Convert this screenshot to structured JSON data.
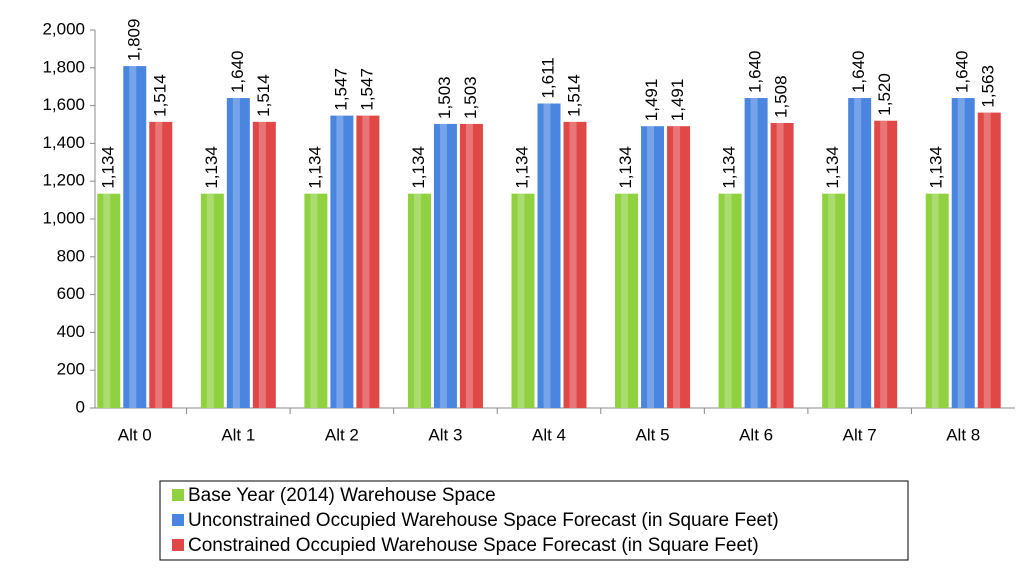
{
  "chart_data": {
    "type": "bar",
    "categories": [
      "Alt 0",
      "Alt 1",
      "Alt 2",
      "Alt 3",
      "Alt 4",
      "Alt 5",
      "Alt 6",
      "Alt 7",
      "Alt 8"
    ],
    "series": [
      {
        "name": "Base Year (2014) Warehouse Space",
        "color": "#8fd13f",
        "values": [
          1134,
          1134,
          1134,
          1134,
          1134,
          1134,
          1134,
          1134,
          1134
        ],
        "value_labels": [
          "1,134",
          "1,134",
          "1,134",
          "1,134",
          "1,134",
          "1,134",
          "1,134",
          "1,134",
          "1,134"
        ]
      },
      {
        "name": "Unconstrained Occupied Warehouse Space Forecast (in Square Feet)",
        "color": "#4a86e0",
        "values": [
          1809,
          1640,
          1547,
          1503,
          1611,
          1491,
          1640,
          1640,
          1640
        ],
        "value_labels": [
          "1,809",
          "1,640",
          "1,547",
          "1,503",
          "1,611",
          "1,491",
          "1,640",
          "1,640",
          "1,640"
        ]
      },
      {
        "name": "Constrained Occupied Warehouse Space Forecast (in Square Feet)",
        "color": "#e04848",
        "values": [
          1514,
          1514,
          1547,
          1503,
          1514,
          1491,
          1508,
          1520,
          1563
        ],
        "value_labels": [
          "1,514",
          "1,514",
          "1,547",
          "1,503",
          "1,514",
          "1,491",
          "1,508",
          "1,520",
          "1,563"
        ]
      }
    ],
    "ylim": [
      0,
      2000
    ],
    "yticks": [
      0,
      200,
      400,
      600,
      800,
      {
        "value": 1000,
        "label": "1,000"
      },
      {
        "value": 1200,
        "label": "1,200"
      },
      {
        "value": 1400,
        "label": "1,400"
      },
      {
        "value": 1600,
        "label": "1,600"
      },
      {
        "value": 1800,
        "label": "1,800"
      },
      {
        "value": 2000,
        "label": "2,000"
      }
    ],
    "grid": false,
    "legend": "bottom"
  }
}
